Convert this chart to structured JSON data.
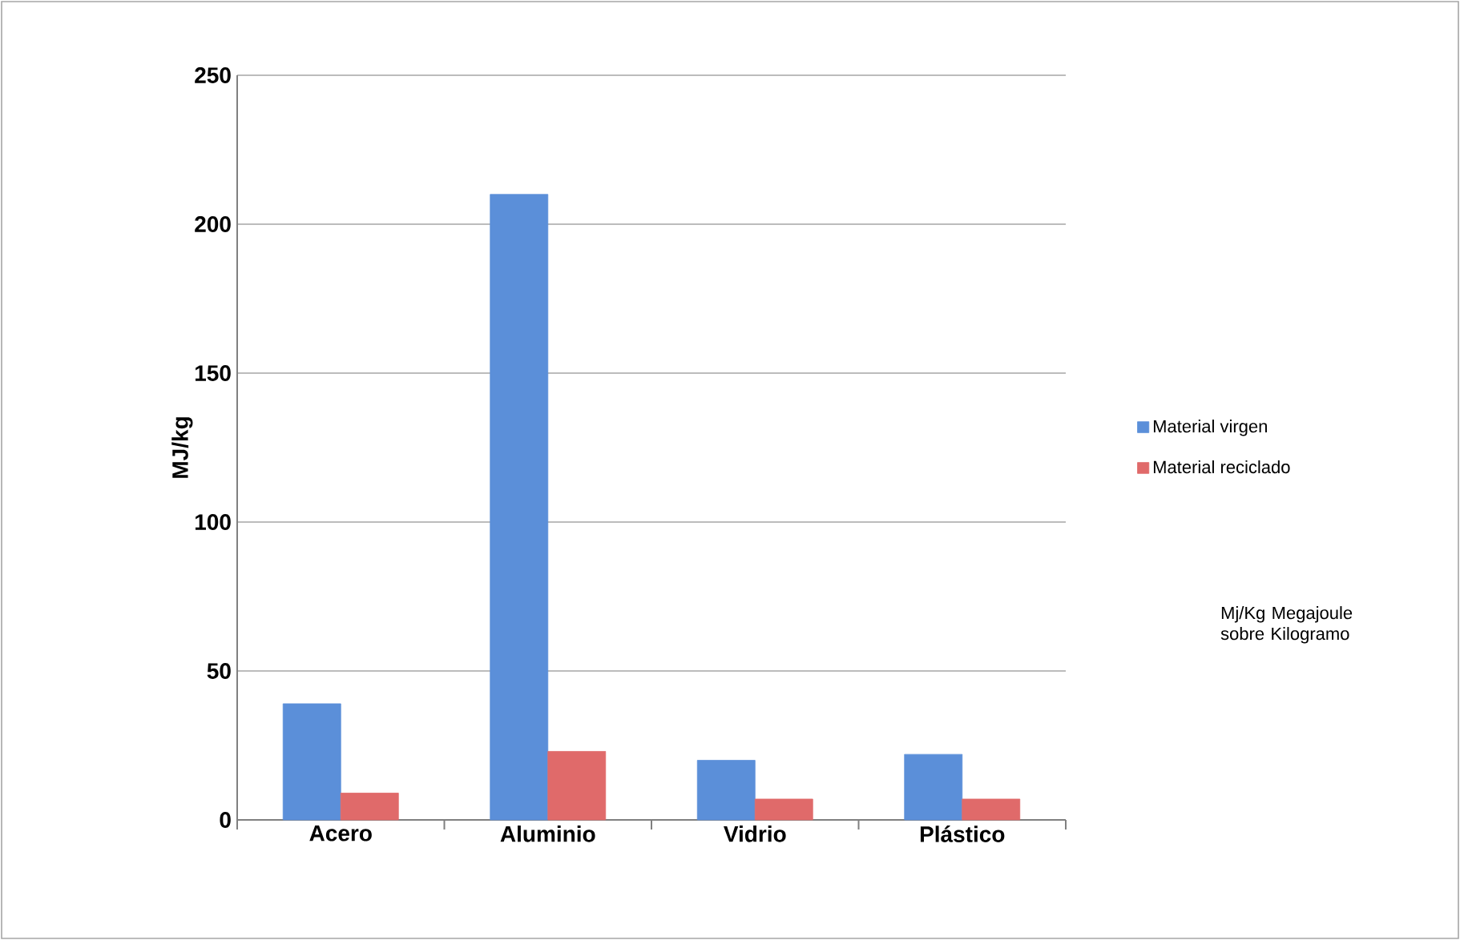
{
  "chart_data": {
    "type": "bar",
    "ylabel": "MJ/kg",
    "categories": [
      "Acero",
      "Aluminio",
      "Vidrio",
      "Plástico"
    ],
    "series": [
      {
        "name": "Material virgen",
        "color": "#5b8fd9",
        "values": [
          39,
          210,
          20,
          22
        ]
      },
      {
        "name": "Material reciclado",
        "color": "#e06a6a",
        "values": [
          9,
          23,
          7,
          7
        ]
      }
    ],
    "ylim": [
      0,
      250
    ],
    "yticks": [
      0,
      50,
      100,
      150,
      200,
      250
    ],
    "grid": "y",
    "legend": "right",
    "annotations": [
      "Mj/Kg Megajoule sobre Kilogramo"
    ]
  }
}
